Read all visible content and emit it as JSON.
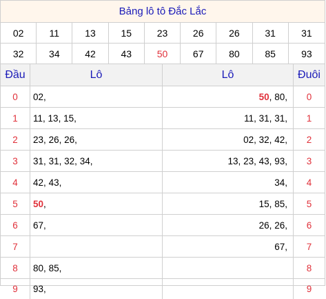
{
  "title": "Bảng lô tô Đắc Lắc",
  "numbers": [
    {
      "v": "02",
      "hl": false
    },
    {
      "v": "11",
      "hl": false
    },
    {
      "v": "13",
      "hl": false
    },
    {
      "v": "15",
      "hl": false
    },
    {
      "v": "23",
      "hl": false
    },
    {
      "v": "26",
      "hl": false
    },
    {
      "v": "26",
      "hl": false
    },
    {
      "v": "31",
      "hl": false
    },
    {
      "v": "31",
      "hl": false
    },
    {
      "v": "32",
      "hl": false
    },
    {
      "v": "34",
      "hl": false
    },
    {
      "v": "42",
      "hl": false
    },
    {
      "v": "43",
      "hl": false
    },
    {
      "v": "50",
      "hl": true
    },
    {
      "v": "67",
      "hl": false
    },
    {
      "v": "80",
      "hl": false
    },
    {
      "v": "85",
      "hl": false
    },
    {
      "v": "93",
      "hl": false
    }
  ],
  "headers": {
    "dau": "Đầu",
    "lo_left": "Lô",
    "lo_right": "Lô",
    "duoi": "Đuôi"
  },
  "rows": [
    {
      "dau": "0",
      "left": [
        {
          "t": "02",
          "hl": false
        }
      ],
      "right": [
        {
          "t": "50",
          "hl": true
        },
        {
          "t": "80",
          "hl": false
        }
      ],
      "duoi": "0"
    },
    {
      "dau": "1",
      "left": [
        {
          "t": "11",
          "hl": false
        },
        {
          "t": "13",
          "hl": false
        },
        {
          "t": "15",
          "hl": false
        }
      ],
      "right": [
        {
          "t": "11",
          "hl": false
        },
        {
          "t": "31",
          "hl": false
        },
        {
          "t": "31",
          "hl": false
        }
      ],
      "duoi": "1"
    },
    {
      "dau": "2",
      "left": [
        {
          "t": "23",
          "hl": false
        },
        {
          "t": "26",
          "hl": false
        },
        {
          "t": "26",
          "hl": false
        }
      ],
      "right": [
        {
          "t": "02",
          "hl": false
        },
        {
          "t": "32",
          "hl": false
        },
        {
          "t": "42",
          "hl": false
        }
      ],
      "duoi": "2"
    },
    {
      "dau": "3",
      "left": [
        {
          "t": "31",
          "hl": false
        },
        {
          "t": "31",
          "hl": false
        },
        {
          "t": "32",
          "hl": false
        },
        {
          "t": "34",
          "hl": false
        }
      ],
      "right": [
        {
          "t": "13",
          "hl": false
        },
        {
          "t": "23",
          "hl": false
        },
        {
          "t": "43",
          "hl": false
        },
        {
          "t": "93",
          "hl": false
        }
      ],
      "duoi": "3"
    },
    {
      "dau": "4",
      "left": [
        {
          "t": "42",
          "hl": false
        },
        {
          "t": "43",
          "hl": false
        }
      ],
      "right": [
        {
          "t": "34",
          "hl": false
        }
      ],
      "duoi": "4"
    },
    {
      "dau": "5",
      "left": [
        {
          "t": "50",
          "hl": true
        }
      ],
      "right": [
        {
          "t": "15",
          "hl": false
        },
        {
          "t": "85",
          "hl": false
        }
      ],
      "duoi": "5"
    },
    {
      "dau": "6",
      "left": [
        {
          "t": "67",
          "hl": false
        }
      ],
      "right": [
        {
          "t": "26",
          "hl": false
        },
        {
          "t": "26",
          "hl": false
        }
      ],
      "duoi": "6"
    },
    {
      "dau": "7",
      "left": [],
      "right": [
        {
          "t": "67",
          "hl": false
        }
      ],
      "duoi": "7"
    },
    {
      "dau": "8",
      "left": [
        {
          "t": "80",
          "hl": false
        },
        {
          "t": "85",
          "hl": false
        }
      ],
      "right": [],
      "duoi": "8"
    },
    {
      "dau": "9",
      "left": [
        {
          "t": "93",
          "hl": false
        }
      ],
      "right": [],
      "duoi": "9"
    }
  ],
  "colors": {
    "accent": "#1a1ab8",
    "highlight": "#e0303a",
    "title_bg": "#fff6ec",
    "header_bg": "#f2f2f2"
  }
}
